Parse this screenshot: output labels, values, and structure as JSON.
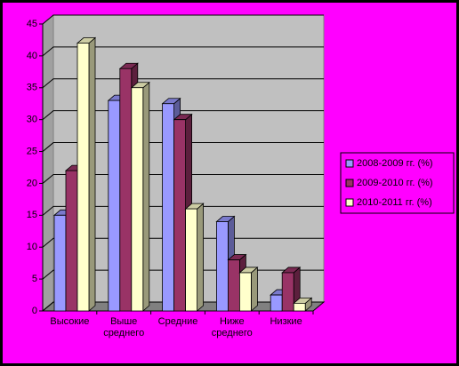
{
  "chart_data": {
    "type": "bar3d",
    "categories": [
      "Высокие",
      "Выше среднего",
      "Средние",
      "Ниже среднего",
      "Низкие"
    ],
    "series": [
      {
        "name": "2008-2009 гг. (%)",
        "color": "#9999ff",
        "values": [
          15,
          33,
          32.5,
          14,
          2.5
        ]
      },
      {
        "name": "2009-2010 гг. (%)",
        "color": "#993366",
        "values": [
          22,
          38,
          30,
          8,
          6
        ]
      },
      {
        "name": "2010-2011 гг. (%)",
        "color": "#ffffcc",
        "values": [
          42,
          35,
          16,
          6,
          1.2
        ]
      }
    ],
    "ylim": [
      0,
      45
    ],
    "yticks": [
      0,
      5,
      10,
      15,
      20,
      25,
      30,
      35,
      40,
      45
    ],
    "grid": true,
    "legend": "right"
  }
}
